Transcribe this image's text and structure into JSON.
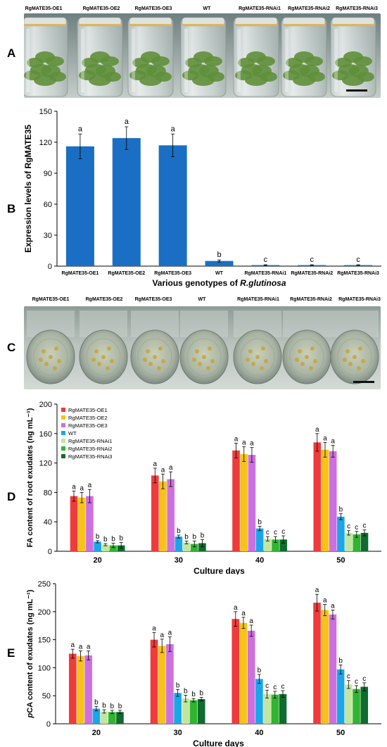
{
  "panels": {
    "A": "A",
    "B": "B",
    "C": "C",
    "D": "D",
    "E": "E"
  },
  "photo_a": {
    "labels": [
      "RgMATE35-OE1",
      "RgMATE35-OE2",
      "RgMATE35-OE3",
      "WT",
      "RgMATE35-RNAi1",
      "RgMATE35-RNAi2",
      "RgMATE35-RNAi3"
    ]
  },
  "photo_c": {
    "labels": [
      "RgMATE35-OE1",
      "RgMATE35-OE2",
      "RgMATE35-OE3",
      "WT",
      "RgMATE35-RNAi1",
      "RgMATE35-RNAi2",
      "RgMATE35-RNAi3"
    ]
  },
  "colors": {
    "bar_b": "#1a6fc4",
    "oe1": "#ef3b3b",
    "oe2": "#f7c31a",
    "oe3": "#cc6fe0",
    "wt": "#1ba6e8",
    "rnai1": "#c2e6a0",
    "rnai2": "#2fb52f",
    "rnai3": "#106b2e"
  },
  "chart_data": [
    {
      "id": "B",
      "type": "bar",
      "ylabel": "Expression levels of RgMATE35",
      "xlabel_prefix": "Various genotypes of ",
      "xlabel_italic": "R.glutinosa",
      "categories": [
        "RgMATE35-OE1",
        "RgMATE35-OE2",
        "RgMATE35-OE3",
        "WT",
        "RgMATE35-RNAi1",
        "RgMATE35-RNAi2",
        "RgMATE35-RNAi3"
      ],
      "values": [
        116,
        124,
        117,
        5,
        1,
        1,
        1
      ],
      "errors": [
        12,
        11,
        11,
        1,
        0.3,
        0.3,
        0.3
      ],
      "letters": [
        "a",
        "a",
        "a",
        "b",
        "c",
        "c",
        "c"
      ],
      "yticks": [
        0,
        30,
        60,
        90,
        120,
        150
      ],
      "ylim": [
        0,
        150
      ]
    },
    {
      "id": "D",
      "type": "bar",
      "ylabel": "FA content of root exudates (ng mL⁻¹)",
      "xlabel": "Culture days",
      "categories": [
        "20",
        "30",
        "40",
        "50"
      ],
      "yticks": [
        0,
        40,
        80,
        120,
        160,
        200
      ],
      "ylim": [
        0,
        200
      ],
      "legend_position": "top-left",
      "series": [
        {
          "name": "RgMATE35-OE1",
          "color_key": "oe1",
          "values": [
            75,
            103,
            137,
            148
          ],
          "errors": [
            7,
            10,
            10,
            12
          ],
          "letters": [
            "a",
            "a",
            "a",
            "a"
          ]
        },
        {
          "name": "RgMATE35-OE2",
          "color_key": "oe2",
          "values": [
            73,
            95,
            132,
            138
          ],
          "errors": [
            7,
            10,
            10,
            10
          ],
          "letters": [
            "a",
            "a",
            "a",
            "a"
          ]
        },
        {
          "name": "RgMATE35-OE3",
          "color_key": "oe3",
          "values": [
            75,
            98,
            131,
            136
          ],
          "errors": [
            9,
            10,
            10,
            8
          ],
          "letters": [
            "a",
            "a",
            "a",
            "a"
          ]
        },
        {
          "name": "WT",
          "color_key": "wt",
          "values": [
            13,
            20,
            31,
            47
          ],
          "errors": [
            1.5,
            2,
            3,
            4
          ],
          "letters": [
            "b",
            "b",
            "b",
            "b"
          ]
        },
        {
          "name": "RgMATE35-RNAi1",
          "color_key": "rnai1",
          "values": [
            9,
            12,
            17,
            25
          ],
          "errors": [
            1.5,
            2,
            3,
            3
          ],
          "letters": [
            "b",
            "b",
            "c",
            "c"
          ]
        },
        {
          "name": "RgMATE35-RNAi2",
          "color_key": "rnai2",
          "values": [
            8,
            10,
            16,
            23
          ],
          "errors": [
            3,
            4,
            4,
            4
          ],
          "letters": [
            "b",
            "b",
            "c",
            "c"
          ]
        },
        {
          "name": "RgMATE35-RNAi3",
          "color_key": "rnai3",
          "values": [
            8,
            11,
            16,
            25
          ],
          "errors": [
            4,
            5,
            5,
            4
          ],
          "letters": [
            "b",
            "b",
            "c",
            "c"
          ]
        }
      ]
    },
    {
      "id": "E",
      "type": "bar",
      "ylabel_italic": "p",
      "ylabel": "CA content of exudates (ng mL⁻¹)",
      "xlabel": "Culture days",
      "categories": [
        "20",
        "30",
        "40",
        "50"
      ],
      "yticks": [
        0,
        50,
        100,
        150,
        200,
        250
      ],
      "ylim": [
        0,
        250
      ],
      "series": [
        {
          "name": "RgMATE35-OE1",
          "color_key": "oe1",
          "values": [
            125,
            150,
            187,
            216
          ],
          "errors": [
            8,
            13,
            13,
            15
          ],
          "letters": [
            "a",
            "a",
            "a",
            "a"
          ]
        },
        {
          "name": "RgMATE35-OE2",
          "color_key": "oe2",
          "values": [
            121,
            139,
            180,
            203
          ],
          "errors": [
            9,
            12,
            10,
            10
          ],
          "letters": [
            "a",
            "a",
            "a",
            "a"
          ]
        },
        {
          "name": "RgMATE35-OE3",
          "color_key": "oe3",
          "values": [
            122,
            142,
            166,
            195
          ],
          "errors": [
            8,
            13,
            10,
            8
          ],
          "letters": [
            "a",
            "a",
            "a",
            "a"
          ]
        },
        {
          "name": "WT",
          "color_key": "wt",
          "values": [
            27,
            55,
            80,
            97
          ],
          "errors": [
            4,
            6,
            8,
            8
          ],
          "letters": [
            "b",
            "b",
            "b",
            "b"
          ]
        },
        {
          "name": "RgMATE35-RNAi1",
          "color_key": "rnai1",
          "values": [
            22,
            45,
            53,
            70
          ],
          "errors": [
            3,
            6,
            7,
            7
          ],
          "letters": [
            "b",
            "b",
            "c",
            "c"
          ]
        },
        {
          "name": "RgMATE35-RNAi2",
          "color_key": "rnai2",
          "values": [
            21,
            42,
            52,
            62
          ],
          "errors": [
            3,
            3,
            6,
            6
          ],
          "letters": [
            "b",
            "b",
            "c",
            "c"
          ]
        },
        {
          "name": "RgMATE35-RNAi3",
          "color_key": "rnai3",
          "values": [
            21,
            44,
            53,
            66
          ],
          "errors": [
            3,
            3,
            6,
            7
          ],
          "letters": [
            "b",
            "b",
            "c",
            "c"
          ]
        }
      ]
    }
  ]
}
